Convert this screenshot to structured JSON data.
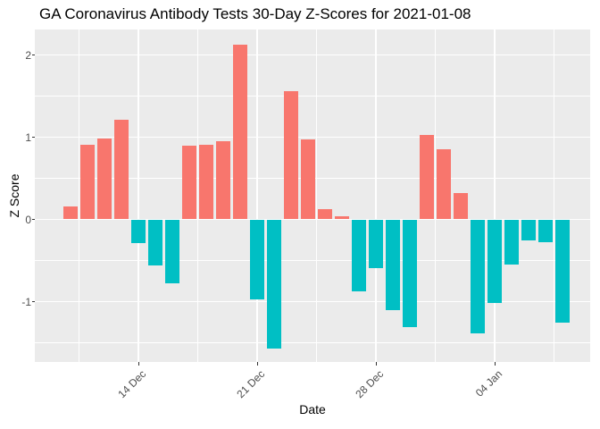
{
  "title": "GA Coronavirus Antibody Tests 30-Day Z-Scores for 2021-01-08",
  "chart_data": {
    "type": "bar",
    "title": "GA Coronavirus Antibody Tests 30-Day Z-Scores for 2021-01-08",
    "xlabel": "Date",
    "ylabel": "Z Score",
    "categories": [
      "10 Dec",
      "11 Dec",
      "12 Dec",
      "13 Dec",
      "14 Dec",
      "15 Dec",
      "16 Dec",
      "17 Dec",
      "18 Dec",
      "19 Dec",
      "20 Dec",
      "21 Dec",
      "22 Dec",
      "23 Dec",
      "24 Dec",
      "25 Dec",
      "26 Dec",
      "27 Dec",
      "28 Dec",
      "29 Dec",
      "30 Dec",
      "31 Dec",
      "01 Jan",
      "02 Jan",
      "03 Jan",
      "04 Jan",
      "05 Jan",
      "06 Jan",
      "07 Jan",
      "08 Jan"
    ],
    "values": [
      0.16,
      0.91,
      0.98,
      1.21,
      -0.29,
      -0.56,
      -0.78,
      0.9,
      0.91,
      0.95,
      2.13,
      -0.97,
      -1.57,
      1.56,
      0.97,
      0.12,
      0.04,
      -0.88,
      -0.59,
      -1.1,
      -1.31,
      1.03,
      0.85,
      0.32,
      -1.39,
      -1.02,
      -0.55,
      -0.25,
      -0.28,
      -1.25
    ],
    "x_ticks": [
      {
        "label": "14 Dec",
        "index": 4
      },
      {
        "label": "21 Dec",
        "index": 11
      },
      {
        "label": "28 Dec",
        "index": 18
      },
      {
        "label": "04 Jan",
        "index": 25
      }
    ],
    "x_minor_indices": [
      0.5,
      7.5,
      14.5,
      21.5,
      28.5
    ],
    "y_major_ticks": [
      -1,
      0,
      1,
      2
    ],
    "y_minor_ticks": [
      -1.5,
      -0.5,
      0.5,
      1.5
    ],
    "ylim": [
      -1.73,
      2.31
    ],
    "grid": true,
    "legend": "none",
    "colors": {
      "positive": "#F8766D",
      "negative": "#00BFC4",
      "panel_background": "#EBEBEB",
      "gridline": "#FFFFFF",
      "tick_label": "#4D4D4D",
      "axis_title": "#000000",
      "tick_mark": "#333333"
    }
  }
}
